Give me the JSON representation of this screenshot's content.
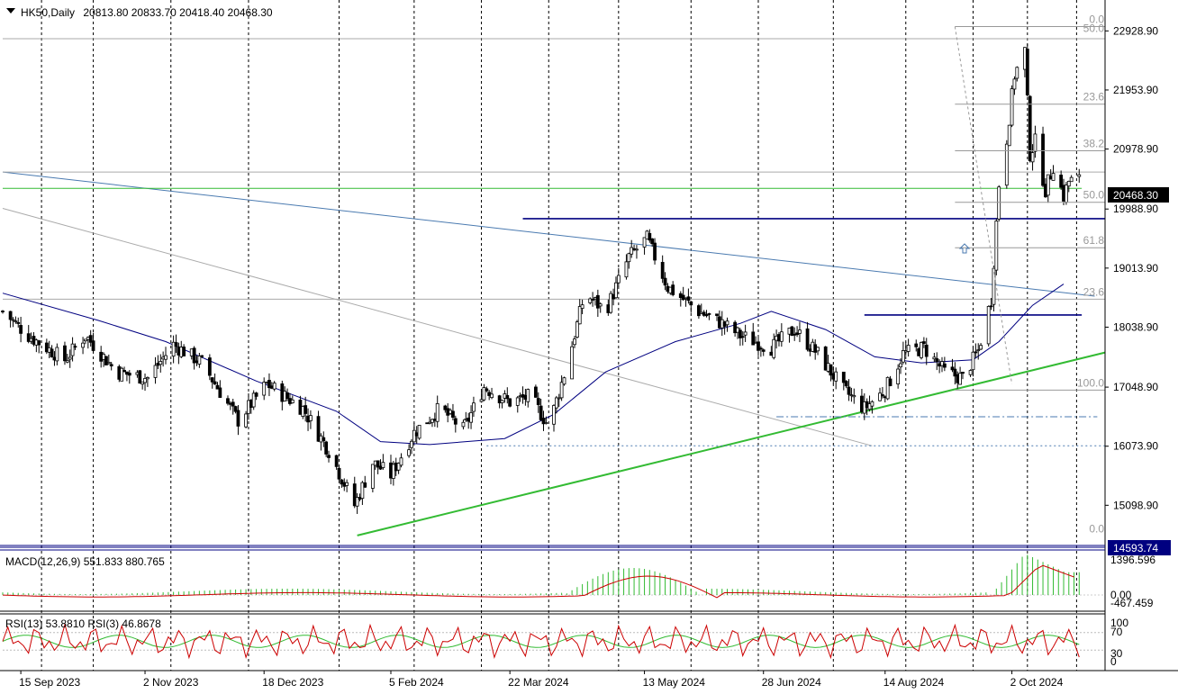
{
  "header": {
    "symbol_label": "HK50,Daily",
    "ohlc": "20813.80 20833.70 20418.40 20468.30"
  },
  "chart_data": {
    "type": "candlestick",
    "symbol": "HK50",
    "timeframe": "Daily",
    "ohlc_last": {
      "open": 20813.8,
      "high": 20833.7,
      "low": 20418.4,
      "close": 20468.3
    },
    "price_axis_ticks": [
      22928.9,
      21953.9,
      20978.9,
      19988.9,
      19013.9,
      18038.9,
      17048.9,
      16073.9,
      15098.9
    ],
    "price_tags": {
      "current": "20468.30",
      "low": "14593.74"
    },
    "ylim": [
      14450,
      23350
    ],
    "xlim": [
      "2023-09-08",
      "2024-11-07"
    ],
    "date_labels": [
      {
        "date": "2023-09-15",
        "label": "15 Sep 2023"
      },
      {
        "date": "2023-11-02",
        "label": "2 Nov 2023"
      },
      {
        "date": "2023-12-18",
        "label": "18 Dec 2023"
      },
      {
        "date": "2024-02-05",
        "label": "5 Feb 2024"
      },
      {
        "date": "2024-03-22",
        "label": "22 Mar 2024"
      },
      {
        "date": "2024-05-13",
        "label": "13 May 2024"
      },
      {
        "date": "2024-06-28",
        "label": "28 Jun 2024"
      },
      {
        "date": "2024-08-14",
        "label": "14 Aug 2024"
      },
      {
        "date": "2024-10-02",
        "label": "2 Oct 2024"
      }
    ],
    "grid_dates": [
      "2023-09-23",
      "2023-10-13",
      "2023-11-12",
      "2023-12-12",
      "2024-01-16",
      "2024-02-14",
      "2024-03-11",
      "2024-04-06",
      "2024-05-03",
      "2024-05-31",
      "2024-06-26",
      "2024-07-25",
      "2024-08-22",
      "2024-09-17",
      "2024-10-08",
      "2024-10-27"
    ],
    "price_path": [
      [
        "2023-09-08",
        18300
      ],
      [
        "2023-09-18",
        17900
      ],
      [
        "2023-10-02",
        17500
      ],
      [
        "2023-10-10",
        17900
      ],
      [
        "2023-10-22",
        17300
      ],
      [
        "2023-11-03",
        17200
      ],
      [
        "2023-11-13",
        17750
      ],
      [
        "2023-11-24",
        17450
      ],
      [
        "2023-12-08",
        16500
      ],
      [
        "2023-12-19",
        17100
      ],
      [
        "2024-01-02",
        16700
      ],
      [
        "2024-01-12",
        16000
      ],
      [
        "2024-01-22",
        15100
      ],
      [
        "2024-01-29",
        15800
      ],
      [
        "2024-02-05",
        15600
      ],
      [
        "2024-02-14",
        16300
      ],
      [
        "2024-02-24",
        16700
      ],
      [
        "2024-03-04",
        16350
      ],
      [
        "2024-03-12",
        17050
      ],
      [
        "2024-03-22",
        16800
      ],
      [
        "2024-03-30",
        16900
      ],
      [
        "2024-04-06",
        16400
      ],
      [
        "2024-04-13",
        17400
      ],
      [
        "2024-04-20",
        18600
      ],
      [
        "2024-04-28",
        18300
      ],
      [
        "2024-05-07",
        19200
      ],
      [
        "2024-05-14",
        19500
      ],
      [
        "2024-05-22",
        18700
      ],
      [
        "2024-06-03",
        18300
      ],
      [
        "2024-06-12",
        18100
      ],
      [
        "2024-06-19",
        17900
      ],
      [
        "2024-07-01",
        17700
      ],
      [
        "2024-07-10",
        18000
      ],
      [
        "2024-07-19",
        17600
      ],
      [
        "2024-07-29",
        17000
      ],
      [
        "2024-08-06",
        16700
      ],
      [
        "2024-08-14",
        17000
      ],
      [
        "2024-08-21",
        17600
      ],
      [
        "2024-08-29",
        17700
      ],
      [
        "2024-09-06",
        17300
      ],
      [
        "2024-09-13",
        17200
      ],
      [
        "2024-09-19",
        17650
      ],
      [
        "2024-09-24",
        18500
      ],
      [
        "2024-09-27",
        20400
      ],
      [
        "2024-09-30",
        21150
      ],
      [
        "2024-10-03",
        22200
      ],
      [
        "2024-10-07",
        22600
      ],
      [
        "2024-10-09",
        20900
      ],
      [
        "2024-10-11",
        21100
      ],
      [
        "2024-10-15",
        20300
      ],
      [
        "2024-10-18",
        20700
      ],
      [
        "2024-10-22",
        20200
      ],
      [
        "2024-10-24",
        20450
      ],
      [
        "2024-10-28",
        20468
      ]
    ],
    "moving_average": [
      [
        "2023-09-08",
        18600
      ],
      [
        "2023-10-15",
        18150
      ],
      [
        "2023-11-10",
        17800
      ],
      [
        "2023-12-15",
        17150
      ],
      [
        "2024-01-15",
        16650
      ],
      [
        "2024-02-01",
        16150
      ],
      [
        "2024-02-20",
        16100
      ],
      [
        "2024-03-20",
        16200
      ],
      [
        "2024-04-08",
        16600
      ],
      [
        "2024-04-28",
        17300
      ],
      [
        "2024-05-25",
        17800
      ],
      [
        "2024-06-19",
        18100
      ],
      [
        "2024-07-01",
        18300
      ],
      [
        "2024-07-22",
        18000
      ],
      [
        "2024-08-10",
        17550
      ],
      [
        "2024-08-28",
        17450
      ],
      [
        "2024-09-17",
        17500
      ],
      [
        "2024-09-27",
        17800
      ],
      [
        "2024-10-10",
        18400
      ],
      [
        "2024-10-22",
        18750
      ]
    ],
    "lines": [
      {
        "kind": "trendline",
        "color": "#4a7ab0",
        "points": [
          [
            "2023-09-08",
            20600
          ],
          [
            "2024-11-03",
            18550
          ]
        ]
      },
      {
        "kind": "trendline",
        "color": "#aaaaaa",
        "points": [
          [
            "2023-09-08",
            20000
          ],
          [
            "2024-08-09",
            16080
          ]
        ]
      },
      {
        "kind": "trendline",
        "color": "#33bb33",
        "points": [
          [
            "2024-01-23",
            14600
          ],
          [
            "2024-11-07",
            17620
          ]
        ]
      },
      {
        "kind": "level",
        "color": "#000080",
        "price": 19830,
        "from": "2024-03-27",
        "to": "2024-11-07"
      },
      {
        "kind": "level",
        "color": "#000080",
        "price": 18240,
        "from": "2024-08-06",
        "to": "2024-10-29"
      },
      {
        "kind": "level",
        "color": "#33bb33",
        "price": 20330,
        "from": "2023-09-08",
        "to": "2024-10-29"
      },
      {
        "kind": "dashed-level",
        "color": "#4a7ab0",
        "price": 16560,
        "from": "2024-07-03",
        "to": "2024-11-04"
      },
      {
        "kind": "dotted-level",
        "color": "#4a7ab0",
        "price": 16080,
        "from": "2024-03-13",
        "to": "2024-11-07"
      },
      {
        "kind": "level",
        "color": "#aaaaaa",
        "price": 22800,
        "from": "2023-09-08",
        "to": "2024-11-07"
      },
      {
        "kind": "level",
        "color": "#aaaaaa",
        "price": 20600,
        "from": "2023-09-08",
        "to": "2024-11-07"
      },
      {
        "kind": "level",
        "color": "#aaaaaa",
        "price": 18500,
        "from": "2023-09-08",
        "to": "2024-11-07"
      }
    ],
    "fib_retracement_levels": [
      {
        "label": "0.0",
        "price": 23000
      },
      {
        "label": "23.6",
        "price": 21720
      },
      {
        "label": "38.2",
        "price": 20950
      },
      {
        "label": "50.0",
        "price": 20100
      },
      {
        "label": "61.8",
        "price": 19350
      },
      {
        "label": "100.0",
        "price": 17000
      }
    ],
    "fib_levels_full_width": [
      {
        "label": "50.0",
        "price": 22850
      },
      {
        "label": "23.6",
        "price": 18500
      },
      {
        "label": "0.0",
        "price": 14593.74
      }
    ],
    "macd": {
      "label": "MACD(12,26,9) 551.833 880.765",
      "ticks": [
        "1396.596",
        "0.00",
        "-467.459"
      ],
      "fast": 12,
      "slow": 26,
      "signal": 9,
      "value": 551.833,
      "signal_value": 880.765
    },
    "rsi": {
      "label": "RSI(13) 53.8810  RSI(3) 46.8678",
      "ticks": [
        "100",
        "70",
        "30",
        "0"
      ],
      "rsi13": 53.881,
      "rsi3": 46.8678
    }
  }
}
